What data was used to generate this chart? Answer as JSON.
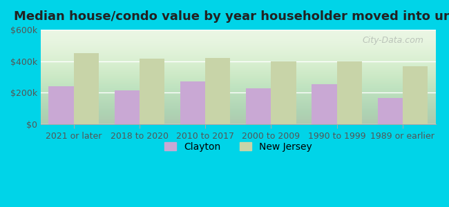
{
  "title": "Median house/condo value by year householder moved into unit",
  "categories": [
    "2021 or later",
    "2018 to 2020",
    "2010 to 2017",
    "2000 to 2009",
    "1990 to 1999",
    "1989 or earlier"
  ],
  "clayton_values": [
    240000,
    215000,
    270000,
    230000,
    255000,
    165000
  ],
  "nj_values": [
    450000,
    415000,
    420000,
    400000,
    400000,
    370000
  ],
  "clayton_color": "#c9a8d4",
  "nj_color": "#c8d4a8",
  "background_color": "#e8f5e0",
  "outer_background": "#00d4e8",
  "ylim": [
    0,
    600000
  ],
  "yticks": [
    0,
    200000,
    400000,
    600000
  ],
  "ytick_labels": [
    "$0",
    "$200k",
    "$400k",
    "$600k"
  ],
  "bar_width": 0.38,
  "legend_labels": [
    "Clayton",
    "New Jersey"
  ],
  "watermark": "City-Data.com",
  "title_fontsize": 13,
  "tick_fontsize": 9,
  "legend_fontsize": 10
}
